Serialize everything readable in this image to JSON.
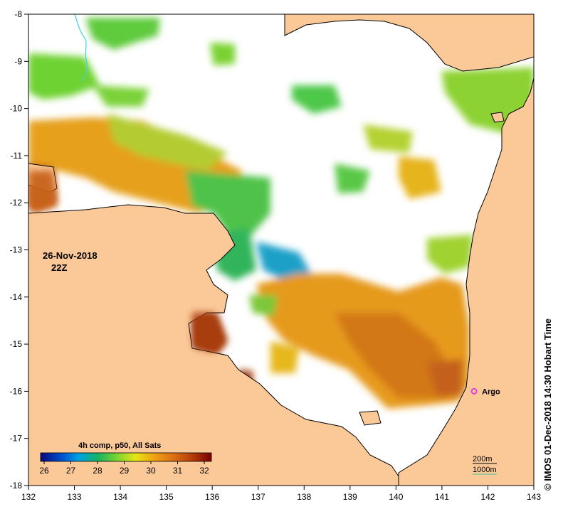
{
  "map": {
    "date_label": "26-Nov-2018",
    "time_label": "22Z",
    "credit": "© IMOS 01-Dec-2018 14:30 Hobart Time",
    "argo_label": "Argo",
    "argo_position": {
      "lon": 141.7,
      "lat": -16.0
    },
    "contour_label_200": "200m",
    "contour_label_1000": "1000m",
    "colorbar": {
      "title": "4h comp, p50, All Sats",
      "ticks": [
        "26",
        "27",
        "28",
        "29",
        "30",
        "31",
        "32"
      ],
      "range": [
        26,
        32
      ],
      "colors": [
        "#0a0a78",
        "#0046c8",
        "#00a0e6",
        "#14b464",
        "#78d232",
        "#e6e614",
        "#f0a014",
        "#dc6e14",
        "#b43c0a",
        "#780000"
      ]
    },
    "x_axis": {
      "ticks": [
        "132",
        "133",
        "134",
        "135",
        "136",
        "137",
        "138",
        "139",
        "140",
        "141",
        "142",
        "143"
      ],
      "range": [
        132,
        143
      ]
    },
    "y_axis": {
      "ticks": [
        "-8",
        "-9",
        "-10",
        "-11",
        "-12",
        "-13",
        "-14",
        "-15",
        "-16",
        "-17",
        "-18"
      ],
      "range": [
        -8,
        -18
      ]
    },
    "colors": {
      "land": "#fbc898",
      "no_data": "#ffffff",
      "coast": "#000000",
      "argo": "#e040e0",
      "contour_1000": "#40c0a0",
      "river": "#40d0e0"
    }
  }
}
